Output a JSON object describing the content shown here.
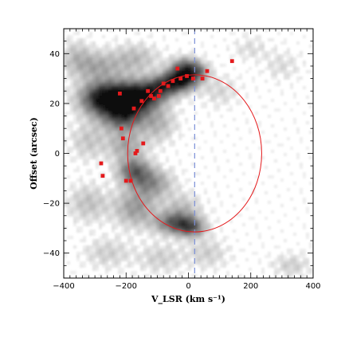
{
  "chart_data": {
    "type": "scatter",
    "title": "",
    "xlabel": "V_LSR (km s⁻¹)",
    "ylabel": "Offset (arcsec)",
    "xlim": [
      -400,
      400
    ],
    "ylim": [
      -50,
      50
    ],
    "x_ticks": [
      -400,
      -200,
      0,
      200,
      400
    ],
    "y_ticks": [
      -40,
      -20,
      0,
      20,
      40
    ],
    "grid": false,
    "legend": "none",
    "background": "greyscale intensity map",
    "colors": {
      "markers": "#e41a1c",
      "ellipse": "#e41a1c",
      "reference_line": "#7b8fd6",
      "frame": "#000000"
    },
    "series": [
      {
        "marker": "square",
        "x": [
          140,
          60,
          45,
          15,
          -5,
          -25,
          -35,
          -50,
          -65,
          -80,
          -90,
          -95,
          -110,
          -120,
          -130,
          -145,
          -150,
          -165,
          -170,
          -175,
          -185,
          -200,
          -210,
          -215,
          -220,
          -275,
          -280
        ],
        "y": [
          37,
          33,
          30,
          30,
          31,
          30,
          34,
          29,
          27,
          28,
          25,
          23,
          22,
          23,
          25,
          4,
          21,
          1,
          0,
          18,
          -11,
          -11,
          6,
          10,
          24,
          -9,
          -4
        ]
      }
    ],
    "ellipse": {
      "cx": 20,
      "cy": 0,
      "rx": 215,
      "ry": 31.5
    },
    "reference_line": {
      "x": 20,
      "style": "dashed"
    },
    "emission_blobs": [
      {
        "x": -270,
        "y": 22,
        "sx": 50,
        "sy": 4.5,
        "a": 1.0
      },
      {
        "x": -190,
        "y": 21,
        "sx": 45,
        "sy": 5,
        "a": 0.8
      },
      {
        "x": -215,
        "y": 14,
        "sx": 45,
        "sy": 4,
        "a": 0.45
      },
      {
        "x": -140,
        "y": 23,
        "sx": 45,
        "sy": 3.5,
        "a": 0.6
      },
      {
        "x": -80,
        "y": 27,
        "sx": 40,
        "sy": 3,
        "a": 0.65
      },
      {
        "x": -20,
        "y": 30,
        "sx": 35,
        "sy": 3,
        "a": 0.95
      },
      {
        "x": -10,
        "y": 35,
        "sx": 30,
        "sy": 2.5,
        "a": 0.45
      },
      {
        "x": 30,
        "y": 33,
        "sx": 25,
        "sy": 2.5,
        "a": 0.35
      },
      {
        "x": -300,
        "y": 35,
        "sx": 60,
        "sy": 4,
        "a": 0.3
      },
      {
        "x": -170,
        "y": 38,
        "sx": 50,
        "sy": 4,
        "a": 0.22
      },
      {
        "x": -200,
        "y": 3,
        "sx": 40,
        "sy": 4,
        "a": 0.3
      },
      {
        "x": -175,
        "y": -7,
        "sx": 35,
        "sy": 3.5,
        "a": 0.55
      },
      {
        "x": -120,
        "y": -12,
        "sx": 45,
        "sy": 4,
        "a": 0.4
      },
      {
        "x": -170,
        "y": -22,
        "sx": 45,
        "sy": 5,
        "a": 0.35
      },
      {
        "x": -40,
        "y": -28,
        "sx": 45,
        "sy": 3,
        "a": 0.6
      },
      {
        "x": 10,
        "y": -30,
        "sx": 30,
        "sy": 2.5,
        "a": 0.45
      },
      {
        "x": -20,
        "y": -22,
        "sx": 40,
        "sy": 4,
        "a": 0.2
      },
      {
        "x": -100,
        "y": 12,
        "sx": 40,
        "sy": 5,
        "a": 0.25
      },
      {
        "x": -320,
        "y": -20,
        "sx": 45,
        "sy": 5,
        "a": 0.2
      },
      {
        "x": -320,
        "y": 5,
        "sx": 40,
        "sy": 5,
        "a": 0.18
      },
      {
        "x": -260,
        "y": -40,
        "sx": 50,
        "sy": 4,
        "a": 0.15
      },
      {
        "x": -90,
        "y": -42,
        "sx": 50,
        "sy": 4,
        "a": 0.15
      },
      {
        "x": 60,
        "y": -40,
        "sx": 45,
        "sy": 4,
        "a": 0.15
      },
      {
        "x": 100,
        "y": 25,
        "sx": 40,
        "sy": 4,
        "a": 0.12
      },
      {
        "x": 300,
        "y": 35,
        "sx": 40,
        "sy": 4,
        "a": 0.1
      },
      {
        "x": 330,
        "y": -45,
        "sx": 40,
        "sy": 3,
        "a": 0.15
      },
      {
        "x": 200,
        "y": 42,
        "sx": 40,
        "sy": 3,
        "a": 0.1
      },
      {
        "x": -360,
        "y": 40,
        "sx": 30,
        "sy": 4,
        "a": 0.15
      }
    ]
  }
}
